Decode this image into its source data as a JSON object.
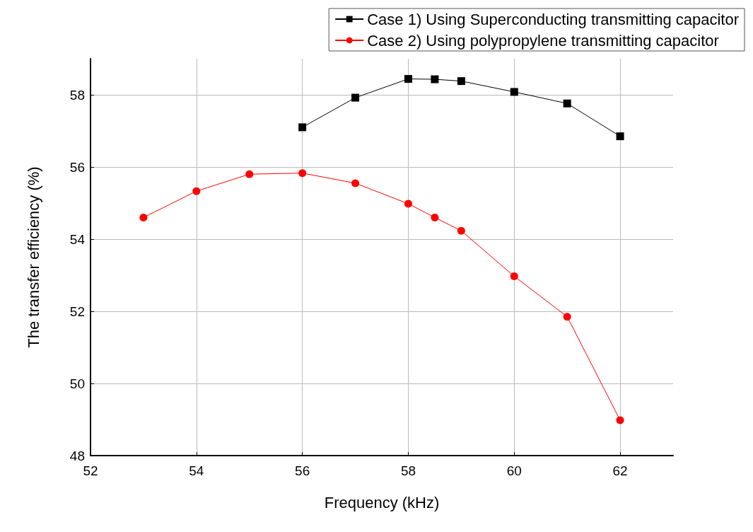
{
  "chart_data": {
    "type": "line",
    "xlabel": "Frequency (kHz)",
    "ylabel": "The transfer efficiency (%)",
    "x": [
      53,
      54,
      55,
      56,
      57,
      58,
      58.5,
      59,
      60,
      61,
      62
    ],
    "series": [
      {
        "name": "Case 1) Using Superconducting transmitting capacitor",
        "color": "#000000",
        "marker": "square",
        "x": [
          56,
          57,
          58,
          58.5,
          59,
          60,
          61,
          62
        ],
        "values": [
          57.1,
          57.92,
          58.44,
          58.43,
          58.38,
          58.08,
          57.76,
          56.85
        ]
      },
      {
        "name": "Case 2) Using polypropylene transmitting capacitor",
        "color": "#ff0000",
        "marker": "circle",
        "values": [
          54.6,
          55.33,
          55.8,
          55.83,
          55.55,
          54.98,
          54.6,
          54.23,
          52.97,
          51.85,
          48.98
        ]
      }
    ],
    "xlim": [
      52,
      63
    ],
    "xticks": [
      52,
      54,
      56,
      58,
      60,
      62
    ],
    "ylim": [
      48,
      59
    ],
    "yticks": [
      48,
      50,
      52,
      54,
      56,
      58
    ],
    "grid": true,
    "legend": "top right",
    "line_style": "solid"
  }
}
